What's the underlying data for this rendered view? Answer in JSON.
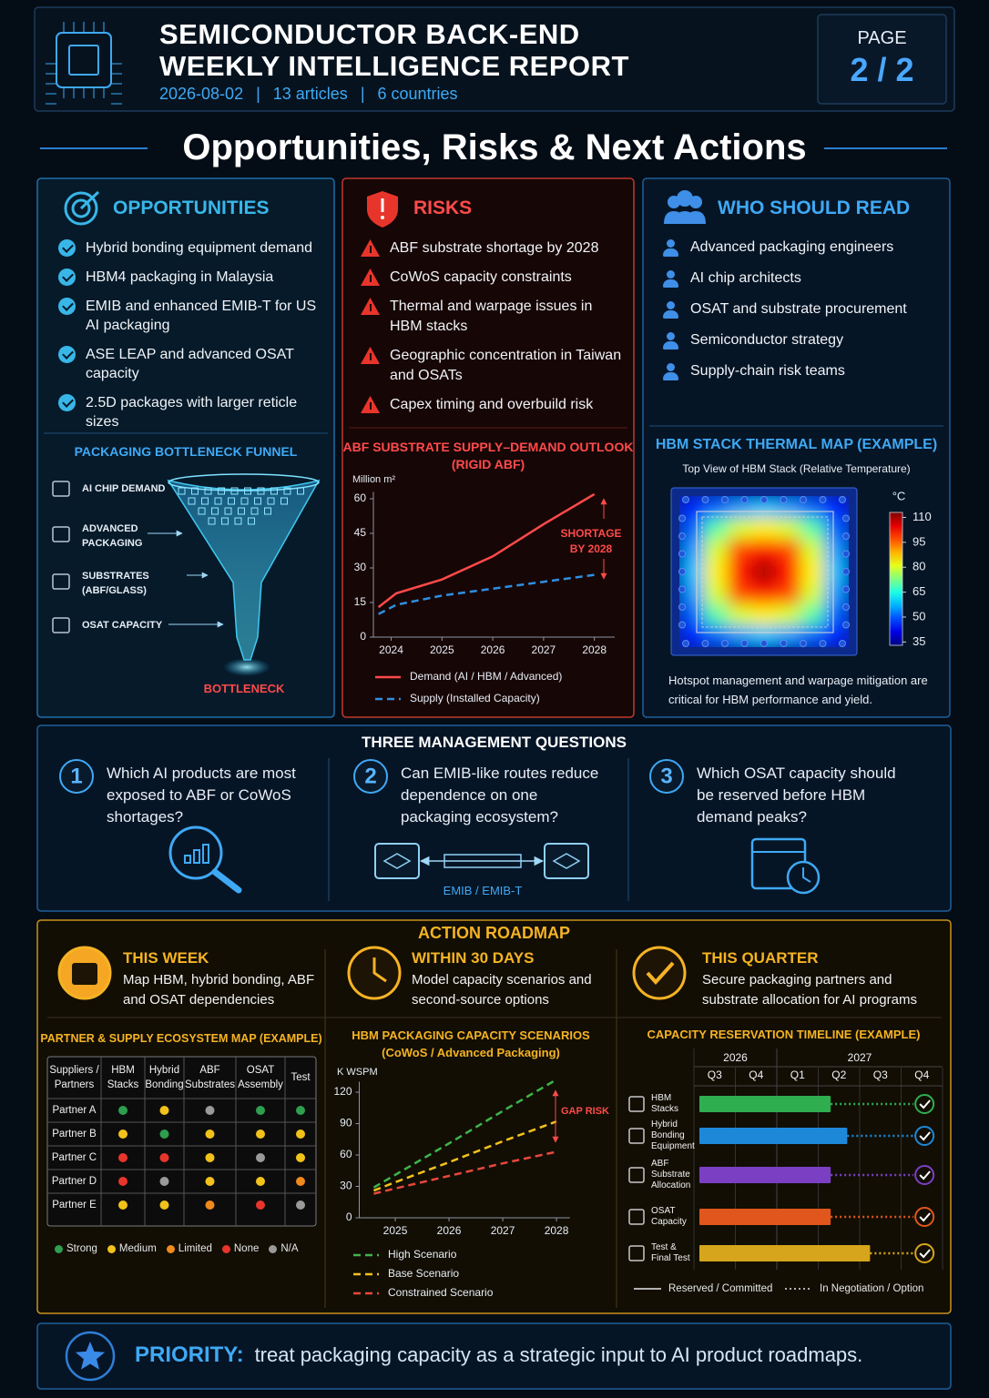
{
  "header": {
    "title_lines": [
      "SEMICONDUCTOR BACK-END",
      "WEEKLY INTELLIGENCE REPORT"
    ],
    "meta": [
      "2026-08-02",
      "13 articles",
      "6 countries"
    ],
    "separator": "|",
    "page_label": "PAGE",
    "page_number": "2 / 2"
  },
  "section_title": "Opportunities, Risks & Next Actions",
  "opportunities": {
    "title": "OPPORTUNITIES",
    "items": [
      "Hybrid bonding equipment demand",
      "HBM4 packaging in Malaysia",
      "EMIB and enhanced EMIB-T for US AI packaging",
      "ASE LEAP and advanced OSAT capacity",
      "2.5D packages with larger reticle sizes"
    ]
  },
  "funnel": {
    "title": "PACKAGING BOTTLENECK FUNNEL",
    "stages": [
      "AI CHIP DEMAND",
      "ADVANCED PACKAGING",
      "SUBSTRATES (ABF/GLASS)",
      "OSAT CAPACITY"
    ],
    "outcome": "BOTTLENECK"
  },
  "risks": {
    "title": "RISKS",
    "items": [
      "ABF substrate shortage by 2028",
      "CoWoS capacity constraints",
      "Thermal and warpage issues in HBM stacks",
      "Geographic concentration in Taiwan and OSATs",
      "Capex timing and overbuild risk"
    ]
  },
  "who_should_read": {
    "title": "WHO SHOULD READ",
    "items": [
      "Advanced packaging engineers",
      "AI chip architects",
      "OSAT and substrate procurement",
      "Semiconductor strategy",
      "Supply-chain risk teams"
    ]
  },
  "chart_data": [
    {
      "type": "line",
      "title": "ABF SUBSTRATE SUPPLY–DEMAND OUTLOOK",
      "subtitle": "(RIGID ABF)",
      "y_label": "Million m²",
      "x": [
        2023.75,
        2024.1,
        2025,
        2026,
        2027,
        2028
      ],
      "series": [
        {
          "name": "Demand (AI / HBM / Advanced)",
          "color": "#ff4a4a",
          "line_style": "solid",
          "values": [
            13,
            19,
            25,
            35,
            49,
            62
          ]
        },
        {
          "name": "Supply (Installed Capacity)",
          "color": "#2f8fe0",
          "line_style": "dashed",
          "values": [
            10,
            14,
            18,
            21,
            24,
            27
          ]
        }
      ],
      "xlim": [
        2023.65,
        2028.4
      ],
      "xticks": [
        2024,
        2025,
        2026,
        2027,
        2028
      ],
      "ylim": [
        0,
        63
      ],
      "yticks": [
        0,
        15,
        30,
        45,
        60
      ],
      "annotation": "SHORTAGE BY 2028"
    },
    {
      "type": "line",
      "title": "HBM PACKAGING CAPACITY SCENARIOS",
      "subtitle": "(CoWoS / Advanced Packaging)",
      "y_label": "K WSPM",
      "x": [
        2024.6,
        2025,
        2026,
        2027,
        2028
      ],
      "series": [
        {
          "name": "High Scenario",
          "color": "#3fb54a",
          "line_style": "dashed",
          "values": [
            29,
            41,
            71,
            102,
            132
          ]
        },
        {
          "name": "Base Scenario",
          "color": "#f2c21b",
          "line_style": "dashed",
          "values": [
            26,
            34,
            53,
            73,
            92
          ]
        },
        {
          "name": "Constrained Scenario",
          "color": "#e8473c",
          "line_style": "dashed",
          "values": [
            23,
            28,
            40,
            52,
            63
          ]
        }
      ],
      "xlim": [
        2024.33,
        2028.25
      ],
      "xticks": [
        2025,
        2026,
        2027,
        2028
      ],
      "ylim": [
        0,
        130
      ],
      "yticks": [
        0,
        30,
        60,
        90,
        120
      ],
      "annotation": "GAP RISK"
    },
    {
      "type": "heatmap",
      "title": "HBM STACK THERMAL MAP (EXAMPLE)",
      "subtitle": "Top View of HBM Stack (Relative Temperature)",
      "unit": "°C",
      "values": [
        [
          45,
          50,
          55,
          58,
          55,
          50,
          45
        ],
        [
          50,
          70,
          80,
          84,
          80,
          70,
          50
        ],
        [
          55,
          80,
          98,
          102,
          98,
          80,
          55
        ],
        [
          58,
          84,
          102,
          110,
          102,
          84,
          58
        ],
        [
          55,
          80,
          98,
          102,
          98,
          80,
          55
        ],
        [
          50,
          70,
          80,
          84,
          80,
          70,
          50
        ],
        [
          45,
          50,
          55,
          58,
          55,
          50,
          45
        ]
      ],
      "clim": [
        33,
        113
      ],
      "cticks": [
        110,
        95,
        80,
        65,
        50,
        35
      ],
      "note": "Hotspot management and warpage mitigation are critical for HBM performance and yield."
    },
    {
      "type": "timeline",
      "title": "CAPACITY RESERVATION TIMELINE (EXAMPLE)",
      "years": [
        "2026",
        "2027"
      ],
      "quarters": [
        "Q3",
        "Q4",
        "Q1",
        "Q2",
        "Q3",
        "Q4"
      ],
      "xlim": [
        0,
        6
      ],
      "rows": [
        {
          "label": "HBM Stacks",
          "color": "#2fae4f",
          "reserved": 3.3,
          "option": 5.3
        },
        {
          "label": "Hybrid Bonding Equipment",
          "color": "#1e88d8",
          "reserved": 3.7,
          "option": 5.3
        },
        {
          "label": "ABF Substrate Allocation",
          "color": "#7b3fc4",
          "reserved": 3.3,
          "option": 5.3
        },
        {
          "label": "OSAT Capacity",
          "color": "#e0561c",
          "reserved": 3.3,
          "option": 5.3
        },
        {
          "label": "Test & Final Test",
          "color": "#d6a51b",
          "reserved": 4.25,
          "option": 5.3
        }
      ],
      "legend": [
        "Reserved / Committed",
        "In Negotiation / Option"
      ]
    }
  ],
  "questions": {
    "title": "THREE MANAGEMENT QUESTIONS",
    "items": [
      {
        "number": "1",
        "text": "Which AI products are most exposed to ABF or CoWoS shortages?"
      },
      {
        "number": "2",
        "text": "Can EMIB-like routes reduce dependence on one packaging ecosystem?"
      },
      {
        "number": "3",
        "text": "Which OSAT capacity should be reserved before HBM demand peaks?"
      }
    ],
    "diagram_label": "EMIB / EMIB-T"
  },
  "roadmap": {
    "title": "ACTION ROADMAP",
    "steps": [
      {
        "title": "THIS WEEK",
        "text": "Map HBM, hybrid bonding, ABF and OSAT dependencies"
      },
      {
        "title": "WITHIN 30 DAYS",
        "text": "Model capacity scenarios and second-source options"
      },
      {
        "title": "THIS QUARTER",
        "text": "Secure packaging partners and substrate allocation for AI programs"
      }
    ]
  },
  "ecosystem_table": {
    "title": "PARTNER & SUPPLY ECOSYSTEM MAP (EXAMPLE)",
    "columns": [
      "Suppliers / Partners",
      "HBM Stacks",
      "Hybrid Bonding",
      "ABF Substrates",
      "OSAT Assembly",
      "Test"
    ],
    "rows": [
      {
        "name": "Partner A",
        "ratings": [
          "Strong",
          "Medium",
          "N/A",
          "Strong",
          "Strong"
        ]
      },
      {
        "name": "Partner B",
        "ratings": [
          "Medium",
          "Strong",
          "Medium",
          "Medium",
          "Medium"
        ]
      },
      {
        "name": "Partner C",
        "ratings": [
          "None",
          "None",
          "Medium",
          "N/A",
          "Medium"
        ]
      },
      {
        "name": "Partner D",
        "ratings": [
          "None",
          "N/A",
          "Medium",
          "Medium",
          "Limited"
        ]
      },
      {
        "name": "Partner E",
        "ratings": [
          "Medium",
          "Medium",
          "Limited",
          "None",
          "N/A"
        ]
      }
    ],
    "legend": [
      {
        "label": "Strong",
        "color": "#2e9e4f"
      },
      {
        "label": "Medium",
        "color": "#f2c21b"
      },
      {
        "label": "Limited",
        "color": "#f08a1c"
      },
      {
        "label": "None",
        "color": "#e8352b"
      },
      {
        "label": "N/A",
        "color": "#9a9a9a"
      }
    ]
  },
  "priority": {
    "label": "PRIORITY:",
    "text": "treat packaging capacity as a strategic input to AI product roadmaps."
  }
}
